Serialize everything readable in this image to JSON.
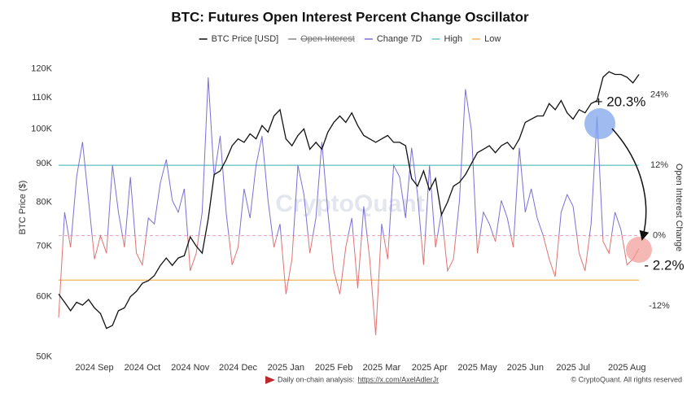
{
  "chart_data": {
    "type": "line",
    "title": "BTC: Futures Open Interest Percent Change Oscillator",
    "ylabel": "BTC Price ($)",
    "y2label": "Open Interest Change",
    "watermark": "CryptoQuant",
    "footer": {
      "text": "Daily on-chain analysis:",
      "link": "https://x.com/AxelAdlerJr",
      "copyright": "© CryptoQuant. All rights reserved"
    },
    "annotations": [
      {
        "text": "+ 20.3%"
      },
      {
        "text": "- 2.2%"
      }
    ],
    "ylog": true,
    "ylim": [
      49800,
      126000
    ],
    "yticks": [
      {
        "value": 50000,
        "label": "50K"
      },
      {
        "value": 60000,
        "label": "60K"
      },
      {
        "value": 70000,
        "label": "70K"
      },
      {
        "value": 80000,
        "label": "80K"
      },
      {
        "value": 90000,
        "label": "90K"
      },
      {
        "value": 100000,
        "label": "100K"
      },
      {
        "value": 110000,
        "label": "110K"
      },
      {
        "value": 120000,
        "label": "120K"
      }
    ],
    "y2lim": [
      -20.9,
      31.2
    ],
    "y2ticks": [
      {
        "value": -12,
        "label": "-12%"
      },
      {
        "value": 0,
        "label": "0%"
      },
      {
        "value": 12,
        "label": "12%"
      },
      {
        "value": 24,
        "label": "24%"
      }
    ],
    "categories": [
      null,
      null,
      null,
      null,
      null,
      null,
      "2024 Sep",
      null,
      null,
      null,
      null,
      null,
      null,
      null,
      "2024 Oct",
      null,
      null,
      null,
      null,
      null,
      null,
      null,
      "2024 Nov",
      null,
      null,
      null,
      null,
      null,
      null,
      null,
      "2024 Dec",
      null,
      null,
      null,
      null,
      null,
      null,
      null,
      "2025 Jan",
      null,
      null,
      null,
      null,
      null,
      null,
      null,
      "2025 Feb",
      null,
      null,
      null,
      null,
      null,
      null,
      null,
      "2025 Mar",
      null,
      null,
      null,
      null,
      null,
      null,
      null,
      "2025 Apr",
      null,
      null,
      null,
      null,
      null,
      null,
      null,
      "2025 May",
      null,
      null,
      null,
      null,
      null,
      null,
      null,
      "2025 Jun",
      null,
      null,
      null,
      null,
      null,
      null,
      null,
      "2025 Jul",
      null,
      null,
      null,
      null,
      null,
      null,
      null,
      null,
      "2025 Aug",
      null,
      null
    ],
    "series": [
      {
        "name": "BTC Price [USD]",
        "color": "#111111",
        "axis": "y",
        "values": [
          60500,
          59000,
          57500,
          59000,
          58500,
          59500,
          58000,
          57000,
          54500,
          55000,
          57500,
          58000,
          60000,
          61000,
          62500,
          63000,
          64000,
          66000,
          67500,
          66000,
          67500,
          68000,
          72000,
          70000,
          68500,
          76000,
          87000,
          88000,
          91000,
          95000,
          97000,
          96000,
          98500,
          97000,
          101000,
          99000,
          104000,
          106000,
          97000,
          95000,
          98000,
          100000,
          94000,
          96000,
          94000,
          99000,
          102000,
          104000,
          102000,
          105000,
          101000,
          98000,
          97000,
          96000,
          97000,
          98000,
          96000,
          96000,
          95000,
          86000,
          84000,
          88000,
          83000,
          86000,
          77000,
          80000,
          84000,
          85000,
          87000,
          90000,
          93000,
          94000,
          95000,
          93000,
          95000,
          96000,
          94000,
          97000,
          102000,
          103000,
          104000,
          104000,
          108000,
          106000,
          109000,
          105000,
          103000,
          106000,
          105000,
          108000,
          109000,
          117000,
          119000,
          118000,
          118000,
          117000,
          115000,
          118000
        ]
      },
      {
        "name": "Open Interest",
        "color": "#888888",
        "hidden": true
      },
      {
        "name": "Change 7D",
        "color": "#7b6fd6",
        "negative_color": "#e07272",
        "axis": "y2",
        "values": [
          -14,
          4,
          -2,
          10,
          16,
          6,
          -4,
          0,
          -3,
          12,
          4,
          -2,
          10,
          -3,
          -5,
          3,
          2,
          9,
          13,
          6,
          4,
          8,
          -6,
          -3,
          4,
          27,
          10,
          17,
          4,
          -5,
          -2,
          8,
          3,
          12,
          17,
          6,
          -2,
          2,
          -10,
          -4,
          12,
          7,
          -3,
          3,
          16,
          4,
          -6,
          -10,
          -2,
          3,
          -9,
          5,
          -4,
          -17,
          2,
          -4,
          12,
          10,
          3,
          15,
          7,
          -5,
          12,
          -2,
          4,
          -6,
          -4,
          6,
          25,
          18,
          -3,
          4,
          2,
          -1,
          6,
          3,
          -2,
          15,
          4,
          8,
          3,
          0,
          -4,
          -7,
          4,
          7,
          5,
          -3,
          -6,
          2,
          20.3,
          -1,
          -3,
          4,
          1,
          -5,
          -4,
          -2.2
        ]
      }
    ],
    "reference_lines": [
      {
        "name": "High",
        "color": "#6cc4c4",
        "value": 12,
        "axis": "y2"
      },
      {
        "name": "Low",
        "color": "#f0b458",
        "value": -7.6,
        "axis": "y2"
      }
    ]
  }
}
